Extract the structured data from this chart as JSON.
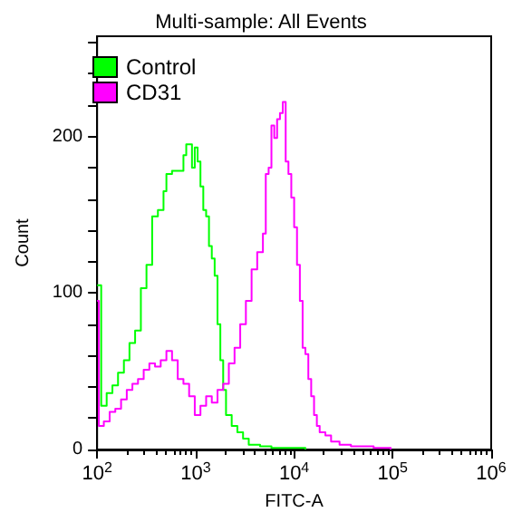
{
  "chart_data": {
    "type": "step",
    "title": "Multi-sample: All Events",
    "xlabel": "FITC-A",
    "ylabel": "Count",
    "log": "x",
    "xlim": [
      100,
      1000000
    ],
    "xticks": [
      {
        "value": 100,
        "label": "10$^{2}$"
      },
      {
        "value": 1000,
        "label": "10$^{3}$"
      },
      {
        "value": 10000,
        "label": "10$^{4}$"
      },
      {
        "value": 100000,
        "label": "10$^{5}$"
      },
      {
        "value": 1000000,
        "label": "10$^{6}$"
      }
    ],
    "ylim": [
      0,
      264
    ],
    "yticks": [
      0,
      {
        "value": 20,
        "label": null
      },
      {
        "value": 40,
        "label": null
      },
      {
        "value": 60,
        "label": null
      },
      {
        "value": 80,
        "label": null
      },
      100,
      {
        "value": 120,
        "label": null
      },
      {
        "value": 140,
        "label": null
      },
      {
        "value": 160,
        "label": null
      },
      {
        "value": 180,
        "label": null
      },
      200,
      {
        "value": 220,
        "label": null
      },
      {
        "value": 240,
        "label": null
      },
      {
        "value": 260,
        "label": null
      }
    ],
    "grid": false,
    "legend": "top left",
    "marker": "none",
    "line_style": "solid",
    "series": [
      {
        "name": "Control",
        "color": "#00ff00",
        "x": [
          100,
          110,
          125,
          143,
          163,
          187,
          213,
          243,
          278,
          317,
          362,
          414,
          472,
          505,
          576,
          658,
          752,
          803,
          918,
          980,
          1047,
          1119,
          1196,
          1278,
          1366,
          1459,
          1560,
          1667,
          1781,
          1904,
          2034,
          2323,
          2653,
          3030,
          3460,
          4510,
          5880,
          7670,
          13000
        ],
        "values": [
          105,
          28,
          36,
          41,
          49,
          57,
          68,
          76,
          103,
          118,
          149,
          153,
          165,
          176,
          178,
          178,
          188,
          195,
          180,
          193,
          184,
          168,
          153,
          149,
          130,
          122,
          111,
          80,
          57,
          38,
          22,
          15,
          11,
          7,
          3,
          2,
          1,
          1,
          0
        ]
      },
      {
        "name": "CD31",
        "color": "#ff00ff",
        "x": [
          100,
          104,
          117,
          134,
          153,
          175,
          200,
          228,
          260,
          297,
          339,
          387,
          442,
          505,
          576,
          658,
          752,
          859,
          980,
          1119,
          1278,
          1459,
          1667,
          1904,
          2173,
          2483,
          2834,
          3236,
          3698,
          4217,
          4819,
          5152,
          5508,
          5880,
          6281,
          6714,
          7178,
          7670,
          8204,
          8750,
          9354,
          10000,
          10690,
          11430,
          12190,
          13000,
          13930,
          14890,
          15920,
          17000,
          18160,
          20750,
          23710,
          28900,
          37700,
          64100,
          95500
        ],
        "values": [
          95,
          15,
          18,
          24,
          26,
          32,
          38,
          42,
          45,
          51,
          55,
          53,
          57,
          63,
          57,
          45,
          42,
          34,
          22,
          28,
          34,
          30,
          38,
          42,
          55,
          65,
          80,
          95,
          115,
          126,
          138,
          176,
          180,
          207,
          199,
          211,
          215,
          222,
          184,
          176,
          161,
          142,
          118,
          95,
          65,
          61,
          45,
          34,
          22,
          15,
          11,
          9,
          5,
          3,
          2,
          1,
          0
        ]
      }
    ]
  }
}
